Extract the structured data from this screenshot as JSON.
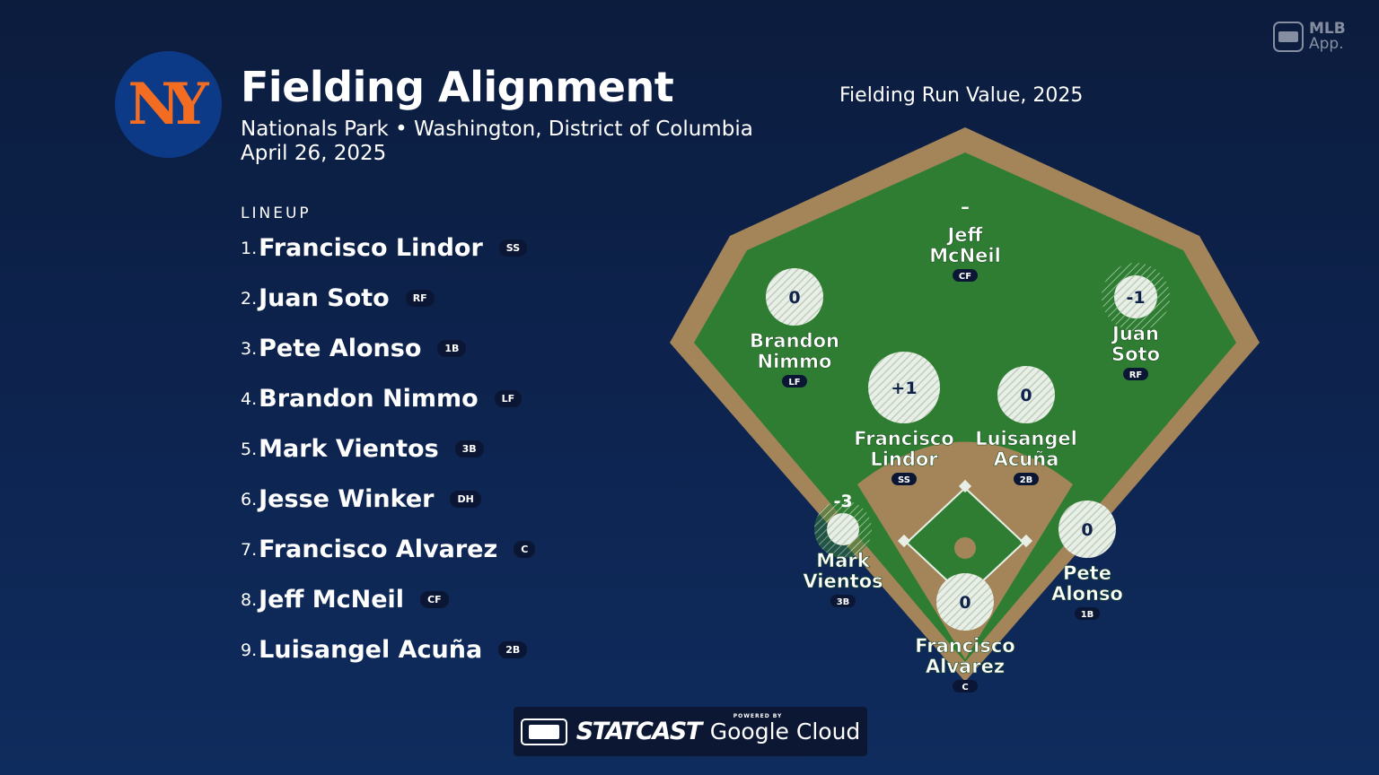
{
  "header": {
    "logo_text": "NY",
    "title": "Fielding Alignment",
    "subtitle": "Nationals Park • Washington, District of Columbia",
    "date": "April 26, 2025",
    "metric_title": "Fielding Run Value, 2025"
  },
  "app_badge": {
    "line1": "MLB",
    "line2": "App."
  },
  "lineup": {
    "label": "LINEUP",
    "players": [
      {
        "num": "1.",
        "name": "Francisco Lindor",
        "pos": "SS"
      },
      {
        "num": "2.",
        "name": "Juan Soto",
        "pos": "RF"
      },
      {
        "num": "3.",
        "name": "Pete Alonso",
        "pos": "1B"
      },
      {
        "num": "4.",
        "name": "Brandon Nimmo",
        "pos": "LF"
      },
      {
        "num": "5.",
        "name": "Mark Vientos",
        "pos": "3B"
      },
      {
        "num": "6.",
        "name": "Jesse Winker",
        "pos": "DH"
      },
      {
        "num": "7.",
        "name": "Francisco Alvarez",
        "pos": "C"
      },
      {
        "num": "8.",
        "name": "Jeff McNeil",
        "pos": "CF"
      },
      {
        "num": "9.",
        "name": "Luisangel Acuña",
        "pos": "2B"
      }
    ]
  },
  "field": {
    "colors": {
      "dirt": "#a4855a",
      "grass": "#2e7d32",
      "bubble": "#e8efe6",
      "value_text": "#10224a"
    },
    "fielders": [
      {
        "id": "cf",
        "first": "Jeff",
        "last": "McNeil",
        "pos": "CF",
        "value": "–",
        "frv": null
      },
      {
        "id": "lf",
        "first": "Brandon",
        "last": "Nimmo",
        "pos": "LF",
        "value": "0",
        "frv": 0
      },
      {
        "id": "rf",
        "first": "Juan",
        "last": "Soto",
        "pos": "RF",
        "value": "-1",
        "frv": -1
      },
      {
        "id": "ss",
        "first": "Francisco",
        "last": "Lindor",
        "pos": "SS",
        "value": "+1",
        "frv": 1
      },
      {
        "id": "2b",
        "first": "Luisangel",
        "last": "Acuña",
        "pos": "2B",
        "value": "0",
        "frv": 0
      },
      {
        "id": "3b",
        "first": "Mark",
        "last": "Vientos",
        "pos": "3B",
        "value": "-3",
        "frv": -3
      },
      {
        "id": "1b",
        "first": "Pete",
        "last": "Alonso",
        "pos": "1B",
        "value": "0",
        "frv": 0
      },
      {
        "id": "c",
        "first": "Francisco",
        "last": "Alvarez",
        "pos": "C",
        "value": "0",
        "frv": 0
      }
    ]
  },
  "footer": {
    "brand": "STATCAST",
    "powered": "POWERED BY",
    "partner": "Google Cloud"
  }
}
